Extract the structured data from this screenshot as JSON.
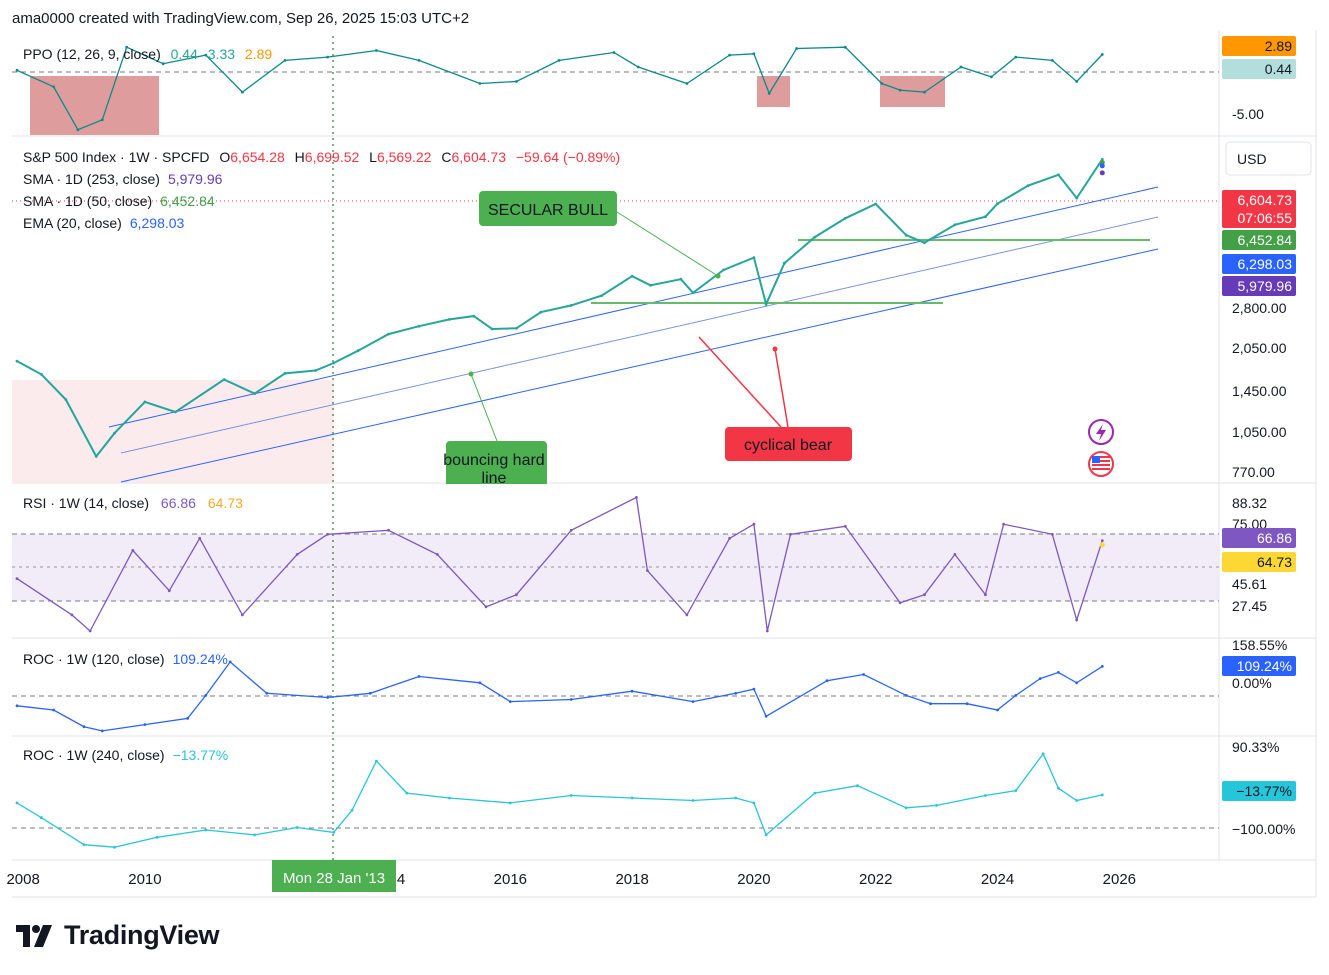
{
  "header": {
    "attribution": "ama0000 created with TradingView.com, Sep 26, 2025 15:03 UTC+2"
  },
  "footer": {
    "brand": "TradingView"
  },
  "currency_button": "USD",
  "crosshair_date_label": "Mon 28 Jan '13",
  "colors": {
    "price_label": "#f23645",
    "sma50": "#43a047",
    "ema20": "#2962ff",
    "sma253": "#673ab7",
    "channel": "#2962ff",
    "ppo_line": "#0a8a8a",
    "ppo_signal": "#ff9800",
    "rsi": "#7e57c2",
    "rsi_ma": "#fdd835",
    "roc120": "#2962ff",
    "roc240": "#26c6da",
    "annotation_bull": "#4caf50",
    "annotation_bear": "#f23645"
  },
  "panes": {
    "ppo": {
      "legend": "PPO (12, 26, 9, close)",
      "values": [
        "0.44",
        "3.33",
        "2.89"
      ],
      "value_colors": [
        "#26a69a",
        "#26a69a",
        "#ff9800"
      ],
      "axis_labels": [
        "-5.00"
      ],
      "badges": [
        {
          "text": "2.89",
          "bg": "#ff9800",
          "fg": "#131722"
        },
        {
          "text": "0.44",
          "bg": "#b2dfdb",
          "fg": "#131722"
        }
      ]
    },
    "price": {
      "legend_title": "S&P 500 Index · 1W · SPCFD",
      "ohlc": [
        {
          "k": "O",
          "v": "6,654.28"
        },
        {
          "k": "H",
          "v": "6,699.52"
        },
        {
          "k": "L",
          "v": "6,569.22"
        },
        {
          "k": "C",
          "v": "6,604.73"
        }
      ],
      "change": "−59.64 (−0.89%)",
      "studies": [
        {
          "name": "SMA · 1D (253, close)",
          "value": "5,979.96",
          "color": "#673ab7"
        },
        {
          "name": "SMA · 1D (50, close)",
          "value": "6,452.84",
          "color": "#43a047"
        },
        {
          "name": "EMA (20, close)",
          "value": "6,298.03",
          "color": "#2962ff"
        }
      ],
      "axis_labels": [
        "2,800.00",
        "2,050.00",
        "1,450.00",
        "1,050.00",
        "770.00"
      ],
      "badges": [
        {
          "text": "6,604.73",
          "bg": "#f23645",
          "fg": "#ffffff"
        },
        {
          "text": "07:06:55",
          "bg": "#f23645",
          "fg": "#ffffff"
        },
        {
          "text": "6,452.84",
          "bg": "#43a047",
          "fg": "#ffffff"
        },
        {
          "text": "6,298.03",
          "bg": "#2962ff",
          "fg": "#ffffff"
        },
        {
          "text": "5,979.96",
          "bg": "#673ab7",
          "fg": "#ffffff"
        }
      ],
      "annotations": [
        {
          "text": "SECULAR BULL"
        },
        {
          "text": "bouncing hard line"
        },
        {
          "text": "cyclical bear"
        }
      ]
    },
    "rsi": {
      "legend": "RSI · 1W (14, close)",
      "values": [
        "66.86",
        "64.73"
      ],
      "axis_labels": [
        "88.32",
        "75.00",
        "45.61",
        "27.45"
      ],
      "badges": [
        {
          "text": "66.86",
          "bg": "#7e57c2",
          "fg": "#ffffff"
        },
        {
          "text": "64.73",
          "bg": "#fdd835",
          "fg": "#131722"
        }
      ]
    },
    "roc120": {
      "legend": "ROC · 1W (120, close)",
      "value": "109.24%",
      "axis_labels": [
        "158.55%",
        "0.00%"
      ],
      "badges": [
        {
          "text": "109.24%",
          "bg": "#2962ff",
          "fg": "#ffffff"
        }
      ]
    },
    "roc240": {
      "legend": "ROC · 1W (240, close)",
      "value": "−13.77%",
      "axis_labels": [
        "90.33%",
        "−100.00%"
      ],
      "badges": [
        {
          "text": "−13.77%",
          "bg": "#26c6da",
          "fg": "#131722"
        }
      ]
    }
  },
  "x_axis_labels": [
    "2008",
    "2010",
    "2014",
    "2016",
    "2018",
    "2020",
    "2022",
    "2024",
    "2026"
  ],
  "chart_data": [
    {
      "type": "line",
      "title": "S&P 500 Index · 1W · SPCFD",
      "scale": "log",
      "ylim": [
        640,
        7600
      ],
      "xlim": [
        2007.85,
        2027.7
      ],
      "series": [
        {
          "name": "S&P 500 Index · 1W · SPCFD",
          "x": [
            2007.9,
            2008.3,
            2008.7,
            2009.2,
            2009.5,
            2010.0,
            2010.5,
            2011.3,
            2011.8,
            2012.3,
            2012.8,
            2013.1,
            2013.5,
            2014.0,
            2014.5,
            2015.0,
            2015.4,
            2015.7,
            2016.1,
            2016.5,
            2017.0,
            2017.5,
            2018.0,
            2018.3,
            2018.8,
            2019.0,
            2019.5,
            2020.0,
            2020.2,
            2020.5,
            2021.0,
            2021.5,
            2022.0,
            2022.5,
            2022.8,
            2023.3,
            2023.8,
            2024.0,
            2024.5,
            2025.0,
            2025.3,
            2025.72
          ],
          "y": [
            1520,
            1380,
            1150,
            760,
            900,
            1130,
            1050,
            1330,
            1200,
            1390,
            1420,
            1500,
            1640,
            1850,
            1960,
            2060,
            2110,
            1920,
            1930,
            2170,
            2280,
            2450,
            2820,
            2640,
            2760,
            2500,
            2950,
            3230,
            2300,
            3100,
            3750,
            4300,
            4770,
            3800,
            3600,
            4100,
            4350,
            4780,
            5450,
            5900,
            4980,
            6604.73
          ]
        },
        {
          "name": "SMA · 1D (253, close)",
          "x": [
            2025.72
          ],
          "y": [
            5979.96
          ]
        },
        {
          "name": "SMA · 1D (50, close)",
          "x": [
            2025.72
          ],
          "y": [
            6452.84
          ]
        },
        {
          "name": "EMA (20, close)",
          "x": [
            2025.72
          ],
          "y": [
            6298.03
          ]
        }
      ],
      "xlabel": "",
      "ylabel": "",
      "grid": false
    },
    {
      "type": "line",
      "title": "RSI · 1W (14, close)",
      "ylim": [
        20,
        92
      ],
      "series": [
        {
          "name": "RSI · 1W (14, close)",
          "x": [
            2007.9,
            2008.8,
            2009.1,
            2009.8,
            2010.4,
            2010.9,
            2011.6,
            2012.5,
            2013.0,
            2014.0,
            2014.8,
            2015.6,
            2016.1,
            2017.0,
            2018.07,
            2018.25,
            2018.9,
            2019.6,
            2020.0,
            2020.22,
            2020.6,
            2021.5,
            2022.4,
            2022.8,
            2023.3,
            2023.8,
            2024.1,
            2024.9,
            2025.3,
            2025.72
          ],
          "y": [
            48,
            30,
            22,
            62,
            42,
            68,
            30,
            60,
            70,
            72,
            60,
            34,
            40,
            72,
            88.32,
            52,
            30,
            68,
            75,
            22,
            70,
            74,
            36,
            40,
            60,
            40,
            75,
            70,
            27.45,
            66.86
          ]
        },
        {
          "name": "MA",
          "x": [
            2025.72
          ],
          "y": [
            64.73
          ]
        }
      ]
    },
    {
      "type": "line",
      "title": "ROC · 1W (120, close)",
      "ylim": [
        -50,
        170
      ],
      "series": [
        {
          "name": "ROC · 1W (120, close)",
          "x": [
            2007.9,
            2008.5,
            2009.0,
            2009.3,
            2010.0,
            2010.7,
            2011.0,
            2011.4,
            2012.0,
            2013.0,
            2013.7,
            2014.5,
            2015.5,
            2016.0,
            2017.0,
            2018.0,
            2019.0,
            2019.7,
            2020.0,
            2020.2,
            2021.2,
            2021.8,
            2022.5,
            2022.9,
            2023.5,
            2024.0,
            2024.3,
            2024.7,
            2025.0,
            2025.3,
            2025.72
          ],
          "y": [
            15,
            5,
            -35,
            -45,
            -30,
            -15,
            40,
            120,
            45,
            35,
            45,
            85,
            70,
            25,
            30,
            50,
            25,
            45,
            55,
            -10,
            75,
            90,
            40,
            20,
            20,
            5,
            40,
            80,
            95,
            70,
            109.24
          ]
        }
      ]
    },
    {
      "type": "line",
      "title": "ROC · 1W (240, close)",
      "ylim": [
        -140,
        100
      ],
      "series": [
        {
          "name": "ROC · 1W (240, close)",
          "x": [
            2007.9,
            2008.3,
            2009.0,
            2009.5,
            2010.2,
            2011.0,
            2011.8,
            2012.5,
            2013.1,
            2013.4,
            2013.8,
            2014.3,
            2015.0,
            2016.0,
            2017.0,
            2018.0,
            2019.0,
            2019.7,
            2020.0,
            2020.2,
            2021.0,
            2021.7,
            2022.5,
            2023.0,
            2023.8,
            2024.3,
            2024.75,
            2025.0,
            2025.3,
            2025.72
          ],
          "y": [
            -30,
            -60,
            -115,
            -120,
            -100,
            -85,
            -95,
            -80,
            -90,
            -45,
            55,
            -10,
            -20,
            -30,
            -15,
            -20,
            -25,
            -20,
            -30,
            -95,
            -10,
            5,
            -40,
            -35,
            -15,
            -5,
            70,
            0,
            -25,
            -13.77
          ]
        }
      ]
    },
    {
      "type": "line",
      "title": "PPO (12, 26, 9, close)",
      "ylim": [
        -9,
        6
      ],
      "series": [
        {
          "name": "PPO (12, 26, 9, close)",
          "x": [
            2007.9,
            2008.5,
            2008.9,
            2009.3,
            2009.7,
            2010.3,
            2011.0,
            2011.6,
            2012.3,
            2013.0,
            2013.8,
            2014.5,
            2015.5,
            2016.1,
            2016.8,
            2017.7,
            2018.1,
            2018.9,
            2019.6,
            2020.0,
            2020.25,
            2020.7,
            2021.5,
            2022.1,
            2022.4,
            2022.8,
            2023.4,
            2023.9,
            2024.3,
            2024.9,
            2025.3,
            2025.72
          ],
          "y": [
            0.5,
            -2,
            -8.5,
            -7,
            4,
            1.5,
            2.8,
            -2.8,
            2,
            2.5,
            3.5,
            2,
            -1.5,
            -1.2,
            2,
            3.2,
            1,
            -1.5,
            2.8,
            3,
            -3,
            3.8,
            4,
            -1.5,
            -2.5,
            -2.8,
            1,
            -0.5,
            2.5,
            2,
            -1.2,
            2.89
          ]
        }
      ]
    }
  ]
}
